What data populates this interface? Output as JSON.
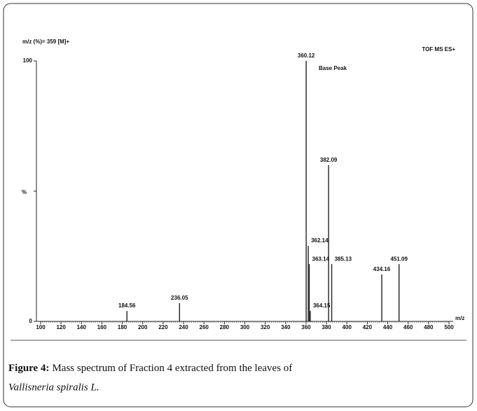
{
  "chart_data": {
    "type": "stem",
    "title": "m/z (%)= 359 [M]+",
    "subtitle": "TOF MS ES+",
    "annotation": "Base Peak",
    "ylabel": "%",
    "xlabel": "m/z",
    "x": [
      184.56,
      236.05,
      360.12,
      362.14,
      363.14,
      364.15,
      382.09,
      385.13,
      434.16,
      451.09
    ],
    "values": [
      4,
      7,
      100,
      29,
      22,
      4,
      60,
      22,
      18,
      22
    ],
    "color": "#222222",
    "xlim": [
      100,
      500
    ],
    "xticks": [
      100,
      120,
      140,
      160,
      180,
      200,
      220,
      240,
      260,
      280,
      300,
      320,
      340,
      360,
      380,
      400,
      420,
      440,
      460,
      480,
      500
    ],
    "ylim": [
      0,
      100
    ],
    "yticks": [
      0,
      100
    ]
  },
  "caption": {
    "label": "Figure 4:",
    "text": "Mass spectrum of Fraction 4 extracted from the leaves of",
    "species": "Vallisneria spiralis L."
  }
}
